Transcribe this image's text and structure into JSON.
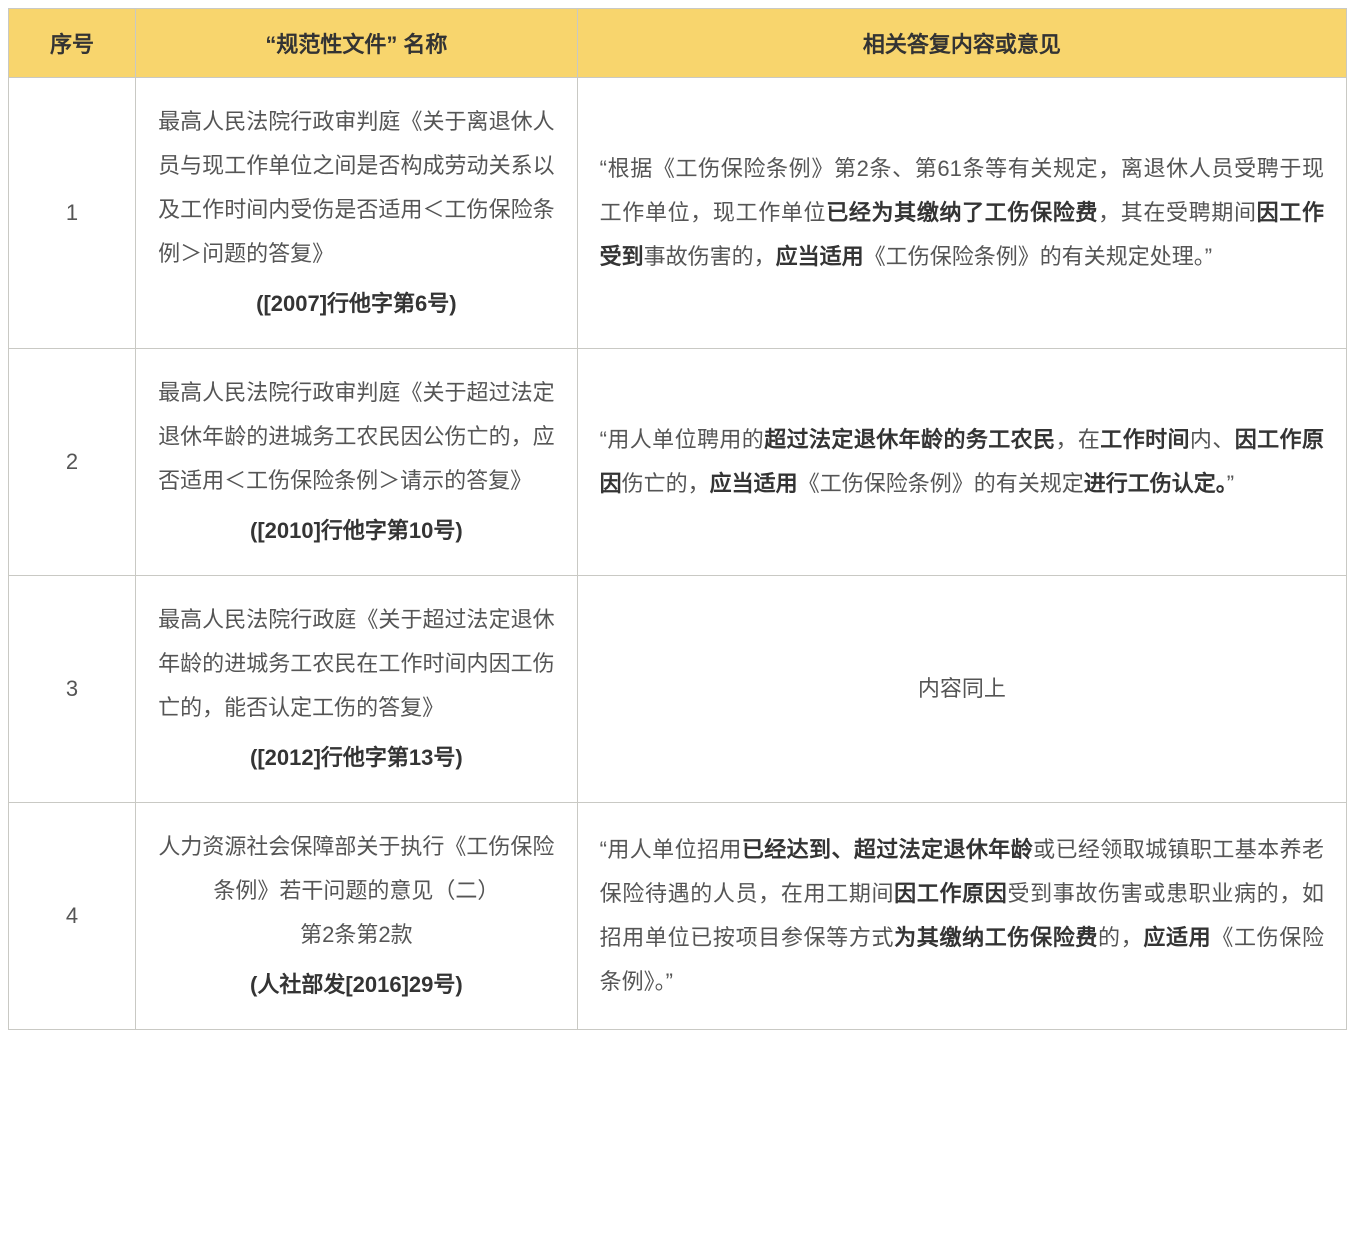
{
  "table": {
    "header_bg": "#f8d56d",
    "border_color": "#c9c9c4",
    "text_color": "#555555",
    "bold_color": "#343434",
    "font_size_pt": 16,
    "line_height": 2.0,
    "background": "#ffffff",
    "columns": [
      {
        "label": "序号",
        "width_pct": 9.5
      },
      {
        "label": "“规范性文件” 名称",
        "width_pct": 33
      },
      {
        "label": "相关答复内容或意见",
        "width_pct": 57.5
      }
    ],
    "rows": [
      {
        "index": "1",
        "name_align": "justify",
        "name_parts": [
          {
            "text": "最高人民法院行政审判庭《关于离退休人员与现工作单位之间是否构成劳动关系以及工作时间内受伤是否适用＜工伤保险条例＞问题的答复》",
            "bold": false
          }
        ],
        "name_number": "([2007]行他字第6号)",
        "content_align": "justify",
        "content_parts": [
          {
            "text": "“根据《工伤保险条例》第2条、第61条等有关规定，离退休人员受聘于现工作单位，现工作单位",
            "bold": false
          },
          {
            "text": "已经为其缴纳了工伤保险费",
            "bold": true
          },
          {
            "text": "，其在受聘期间",
            "bold": false
          },
          {
            "text": "因工作受到",
            "bold": true
          },
          {
            "text": "事故伤害的，",
            "bold": false
          },
          {
            "text": "应当适用",
            "bold": true
          },
          {
            "text": "《工伤保险条例》的有关规定处理。”",
            "bold": false
          }
        ]
      },
      {
        "index": "2",
        "name_align": "justify",
        "name_parts": [
          {
            "text": "最高人民法院行政审判庭《关于超过法定退休年龄的进城务工农民因公伤亡的，应否适用＜工伤保险条例＞请示的答复》",
            "bold": false
          }
        ],
        "name_number": "([2010]行他字第10号)",
        "content_align": "justify",
        "content_parts": [
          {
            "text": "“用人单位聘用的",
            "bold": false
          },
          {
            "text": "超过法定退休年龄的务工农民",
            "bold": true
          },
          {
            "text": "，在",
            "bold": false
          },
          {
            "text": "工作时间",
            "bold": true
          },
          {
            "text": "内、",
            "bold": false
          },
          {
            "text": "因工作原因",
            "bold": true
          },
          {
            "text": "伤亡的，",
            "bold": false
          },
          {
            "text": "应当适用",
            "bold": true
          },
          {
            "text": "《工伤保险条例》的有关规定",
            "bold": false
          },
          {
            "text": "进行工伤认定。",
            "bold": true
          },
          {
            "text": "”",
            "bold": false
          }
        ]
      },
      {
        "index": "3",
        "name_align": "justify",
        "name_parts": [
          {
            "text": "最高人民法院行政庭《关于超过法定退休年龄的进城务工农民在工作时间内因工伤亡的，能否认定工伤的答复》",
            "bold": false
          }
        ],
        "name_number": "([2012]行他字第13号)",
        "content_align": "center",
        "content_parts": [
          {
            "text": "内容同上",
            "bold": false
          }
        ]
      },
      {
        "index": "4",
        "name_align": "center",
        "name_parts": [
          {
            "text": "人力资源社会保障部关于执行《工伤保险条例》若干问题的意见（二）",
            "bold": false,
            "break_after": true
          },
          {
            "text": "第2条第2款",
            "bold": false
          }
        ],
        "name_number": "(人社部发[2016]29号)",
        "content_align": "justify",
        "content_parts": [
          {
            "text": "“用人单位招用",
            "bold": false
          },
          {
            "text": "已经达到、超过法定退休年龄",
            "bold": true
          },
          {
            "text": "或已经领取城镇职工基本养老保险待遇的人员，在用工期间",
            "bold": false
          },
          {
            "text": "因工作原因",
            "bold": true
          },
          {
            "text": "受到事故伤害或患职业病的，如招用单位已按项目参保等方式",
            "bold": false
          },
          {
            "text": "为其缴纳工伤保险费",
            "bold": true
          },
          {
            "text": "的，",
            "bold": false
          },
          {
            "text": "应适用",
            "bold": true
          },
          {
            "text": "《工伤保险条例》。”",
            "bold": false
          }
        ]
      }
    ]
  }
}
